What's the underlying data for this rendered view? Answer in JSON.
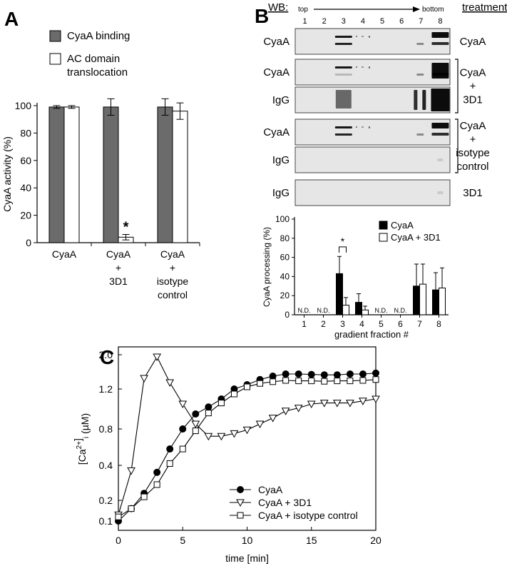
{
  "panels": {
    "a": "A",
    "b": "B",
    "c": "C"
  },
  "chart_data": [
    {
      "panel": "A",
      "type": "bar",
      "ylabel": "CyaA activity (%)",
      "ylim": [
        0,
        100
      ],
      "yticks": [
        "0",
        "20",
        "40",
        "60",
        "80",
        "100"
      ],
      "categories": [
        [
          "CyaA"
        ],
        [
          "CyaA",
          "+",
          "3D1"
        ],
        [
          "CyaA",
          "+",
          "isotype",
          "control"
        ]
      ],
      "series": [
        {
          "name": "CyaA binding",
          "color": "#6b6b6b",
          "values": [
            99,
            99,
            99
          ],
          "errors": [
            1,
            6,
            6
          ]
        },
        {
          "name": "AC domain translocation",
          "color": "#ffffff",
          "values": [
            99,
            4,
            96
          ],
          "errors": [
            1,
            2,
            6
          ]
        }
      ],
      "legend": [
        [
          "CyaA binding"
        ],
        [
          "AC domain",
          "translocation"
        ]
      ],
      "annotation": "*"
    },
    {
      "panel": "B",
      "type": "bar",
      "ylabel": "CyaA processing (%)",
      "xlabel": "gradient fraction #",
      "ylim": [
        0,
        100
      ],
      "yticks": [
        "0",
        "20",
        "40",
        "60",
        "80",
        "100"
      ],
      "categories": [
        "1",
        "2",
        "3",
        "4",
        "5",
        "6",
        "7",
        "8"
      ],
      "series": [
        {
          "name": "CyaA",
          "color": "#000000",
          "values": [
            null,
            null,
            43,
            13,
            null,
            null,
            30,
            26
          ],
          "errors": [
            0,
            0,
            18,
            9,
            0,
            0,
            23,
            18
          ]
        },
        {
          "name": "CyaA + 3D1",
          "color": "#ffffff",
          "values": [
            null,
            null,
            10,
            5,
            null,
            null,
            32,
            28
          ],
          "errors": [
            0,
            0,
            8,
            4,
            0,
            0,
            21,
            21
          ]
        }
      ],
      "nd_label": "N.D.",
      "nd_fractions": [
        1,
        2,
        5,
        6
      ],
      "significance": "*"
    },
    {
      "panel": "C",
      "type": "line",
      "xlabel": "time [min]",
      "ylabel_parts": [
        "[Ca",
        "2+",
        "]",
        "i",
        " (µM)"
      ],
      "xlim": [
        0,
        20
      ],
      "xticks": [
        "0",
        "5",
        "10",
        "15",
        "20"
      ],
      "yticks": [
        "0.1",
        "0.2",
        "0.4",
        "0.8",
        "1.2",
        "2.0"
      ],
      "x": [
        0,
        1,
        2,
        3,
        4,
        5,
        6,
        7,
        8,
        9,
        10,
        11,
        12,
        13,
        14,
        15,
        16,
        17,
        18,
        19,
        20
      ],
      "series": [
        {
          "name": "CyaA",
          "marker": "circle",
          "values": [
            0.1,
            0.16,
            0.24,
            0.36,
            0.58,
            0.8,
            0.95,
            1.02,
            1.1,
            1.2,
            1.3,
            1.42,
            1.5,
            1.55,
            1.55,
            1.54,
            1.53,
            1.53,
            1.55,
            1.55,
            1.57
          ]
        },
        {
          "name": "CyaA + 3D1",
          "marker": "triangle-down",
          "values": [
            0.13,
            0.37,
            1.45,
            1.95,
            1.35,
            1.05,
            0.85,
            0.72,
            0.72,
            0.75,
            0.79,
            0.85,
            0.91,
            0.98,
            1.01,
            1.05,
            1.06,
            1.06,
            1.06,
            1.08,
            1.1
          ]
        },
        {
          "name": "CyaA + isotype control",
          "marker": "square",
          "values": [
            0.12,
            0.16,
            0.22,
            0.29,
            0.42,
            0.58,
            0.78,
            0.96,
            1.06,
            1.15,
            1.25,
            1.33,
            1.37,
            1.4,
            1.39,
            1.39,
            1.38,
            1.39,
            1.39,
            1.4,
            1.42
          ]
        }
      ]
    }
  ],
  "western_blot": {
    "header": "WB:",
    "top_label": "top",
    "bottom_label": "bottom",
    "treatment_header": "treatment",
    "fractions": [
      "1",
      "2",
      "3",
      "4",
      "5",
      "6",
      "7",
      "8"
    ],
    "rows": [
      {
        "label": "CyaA",
        "pattern": "cyaa"
      },
      {
        "label": "CyaA",
        "pattern": "cyaa2"
      },
      {
        "label": "IgG",
        "pattern": "igg"
      },
      {
        "label": "CyaA",
        "pattern": "cyaa"
      },
      {
        "label": "IgG",
        "pattern": "blank"
      },
      {
        "label": "IgG",
        "pattern": "blank"
      }
    ],
    "treatments": [
      {
        "lines": [
          "CyaA"
        ],
        "rows": [
          0,
          0
        ],
        "bracket": false
      },
      {
        "lines": [
          "CyaA",
          "+",
          "3D1"
        ],
        "rows": [
          1,
          2
        ],
        "bracket": true
      },
      {
        "lines": [
          "CyaA",
          "+",
          "isotype",
          "control"
        ],
        "rows": [
          3,
          4
        ],
        "bracket": true
      },
      {
        "lines": [
          "3D1"
        ],
        "rows": [
          5,
          5
        ],
        "bracket": false
      }
    ]
  }
}
